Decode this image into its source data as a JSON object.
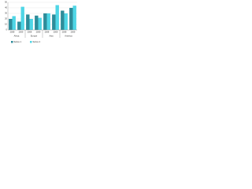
{
  "chart_data": {
    "type": "bar",
    "categories": [
      "2008",
      "2009",
      "2008",
      "2009",
      "2008",
      "2009",
      "2008",
      "2009"
    ],
    "groups": [
      {
        "name": "Africa",
        "span": [
          0,
          1
        ]
      },
      {
        "name": "Europe",
        "span": [
          2,
          3
        ]
      },
      {
        "name": "Asia",
        "span": [
          4,
          5
        ]
      },
      {
        "name": "America",
        "span": [
          6,
          7
        ]
      }
    ],
    "series": [
      {
        "name": "Series 1",
        "color": "#2e8c9a",
        "values": [
          20,
          15,
          28,
          26,
          30,
          28,
          35,
          40
        ]
      },
      {
        "name": "Series 2",
        "color": "#4fd6e6",
        "values": [
          25,
          42,
          20,
          22,
          30,
          45,
          30,
          44
        ]
      }
    ],
    "ylim": [
      0,
      50
    ],
    "yticks": [
      0,
      10,
      20,
      30,
      40,
      50
    ],
    "grid": true
  }
}
